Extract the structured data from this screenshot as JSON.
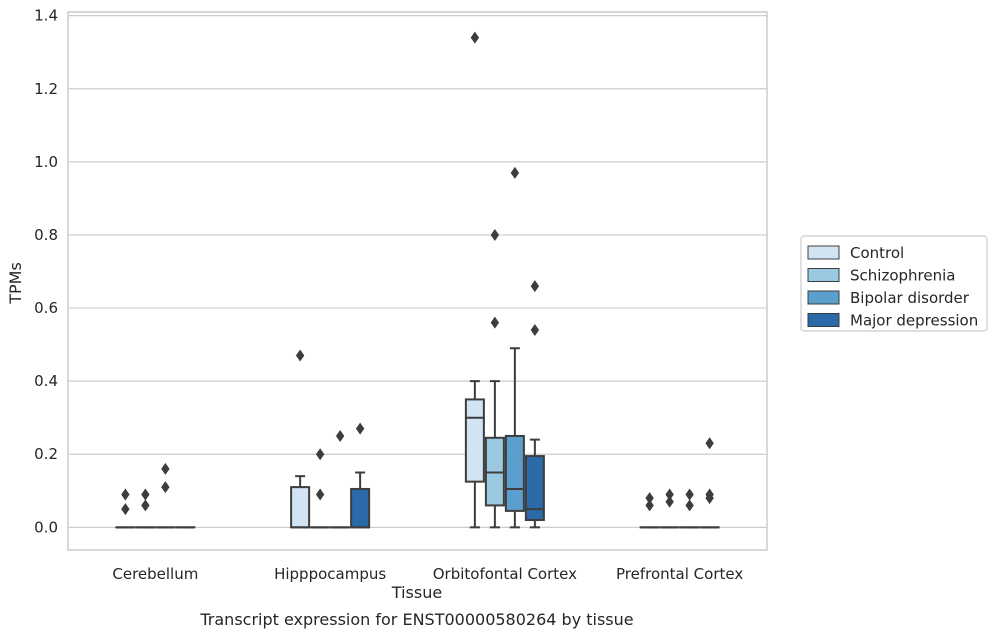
{
  "chart_data": {
    "type": "box",
    "caption": "Transcript expression for ENST00000580264 by tissue",
    "xlabel": "Tissue",
    "ylabel": "TPMs",
    "ylim": [
      -0.062,
      1.41
    ],
    "yticks": [
      0.0,
      0.2,
      0.4,
      0.6,
      0.8,
      1.0,
      1.2,
      1.4
    ],
    "ytick_labels": [
      "0.0",
      "0.2",
      "0.4",
      "0.6",
      "0.8",
      "1.0",
      "1.2",
      "1.4"
    ],
    "grid": "horizontal",
    "legend_position": "right",
    "categories": [
      "Cerebellum",
      "Hipppocampus",
      "Orbitofontal Cortex",
      "Prefrontal Cortex"
    ],
    "series": [
      {
        "name": "Control",
        "color": "#d2e3f3",
        "boxes": [
          {
            "q1": 0,
            "median": 0,
            "q3": 0,
            "wlo": 0,
            "whi": 0,
            "outliers": [
              0.05,
              0.09
            ]
          },
          {
            "q1": 0,
            "median": 0,
            "q3": 0.11,
            "wlo": 0,
            "whi": 0.14,
            "outliers": [
              0.47
            ]
          },
          {
            "q1": 0.125,
            "median": 0.3,
            "q3": 0.35,
            "wlo": 0,
            "whi": 0.4,
            "outliers": [
              1.34
            ]
          },
          {
            "q1": 0,
            "median": 0,
            "q3": 0,
            "wlo": 0,
            "whi": 0,
            "outliers": [
              0.06,
              0.08
            ]
          }
        ]
      },
      {
        "name": "Schizophrenia",
        "color": "#9ac8e0",
        "boxes": [
          {
            "q1": 0,
            "median": 0,
            "q3": 0,
            "wlo": 0,
            "whi": 0,
            "outliers": [
              0.06,
              0.09
            ]
          },
          {
            "q1": 0,
            "median": 0,
            "q3": 0,
            "wlo": 0,
            "whi": 0,
            "outliers": [
              0.09,
              0.2
            ]
          },
          {
            "q1": 0.06,
            "median": 0.15,
            "q3": 0.245,
            "wlo": 0,
            "whi": 0.4,
            "outliers": [
              0.56,
              0.8
            ]
          },
          {
            "q1": 0,
            "median": 0,
            "q3": 0,
            "wlo": 0,
            "whi": 0,
            "outliers": [
              0.07,
              0.09
            ]
          }
        ]
      },
      {
        "name": "Bipolar disorder",
        "color": "#5a9fcd",
        "boxes": [
          {
            "q1": 0,
            "median": 0,
            "q3": 0,
            "wlo": 0,
            "whi": 0,
            "outliers": [
              0.11,
              0.16
            ]
          },
          {
            "q1": 0,
            "median": 0,
            "q3": 0,
            "wlo": 0,
            "whi": 0,
            "outliers": [
              0.25
            ]
          },
          {
            "q1": 0.045,
            "median": 0.105,
            "q3": 0.25,
            "wlo": 0,
            "whi": 0.49,
            "outliers": [
              0.97
            ]
          },
          {
            "q1": 0,
            "median": 0,
            "q3": 0,
            "wlo": 0,
            "whi": 0,
            "outliers": [
              0.06,
              0.09
            ]
          }
        ]
      },
      {
        "name": "Major depression",
        "color": "#2a6aa8",
        "boxes": [
          {
            "q1": 0,
            "median": 0,
            "q3": 0,
            "wlo": 0,
            "whi": 0,
            "outliers": []
          },
          {
            "q1": 0,
            "median": 0,
            "q3": 0.105,
            "wlo": 0,
            "whi": 0.15,
            "outliers": [
              0.27
            ]
          },
          {
            "q1": 0.02,
            "median": 0.05,
            "q3": 0.195,
            "wlo": 0,
            "whi": 0.24,
            "outliers": [
              0.54,
              0.66
            ]
          },
          {
            "q1": 0,
            "median": 0,
            "q3": 0,
            "wlo": 0,
            "whi": 0,
            "outliers": [
              0.08,
              0.09,
              0.23
            ]
          }
        ]
      }
    ]
  }
}
